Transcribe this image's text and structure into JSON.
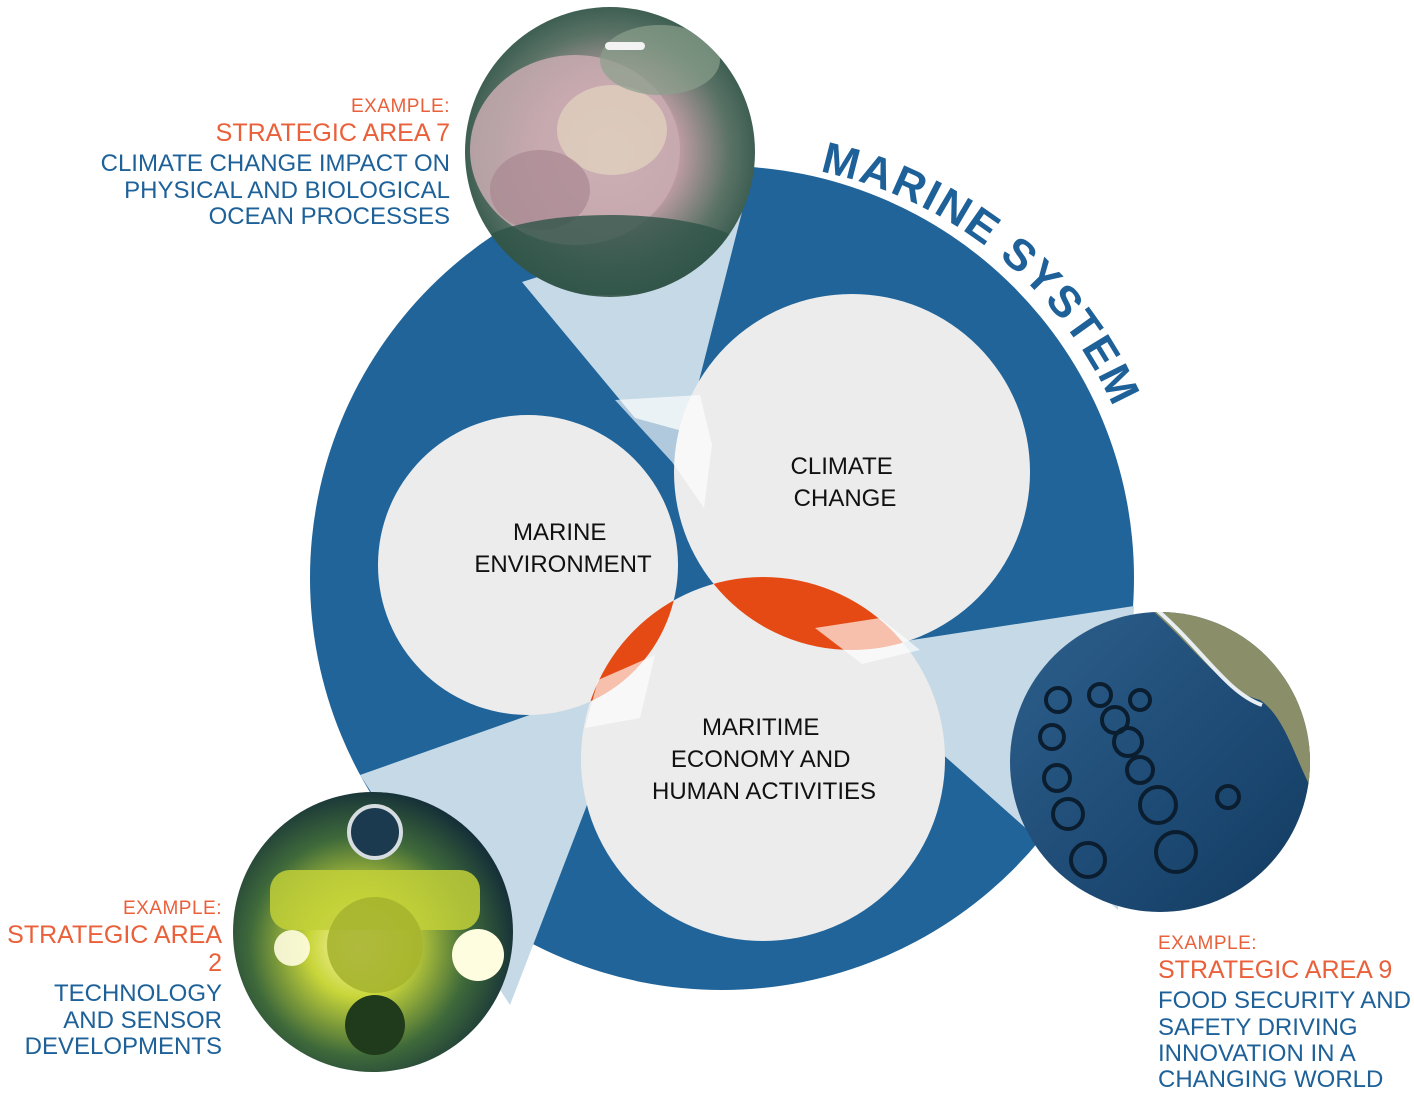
{
  "ring_title": "MARINE SYSTEM",
  "circles": {
    "marine_environment": [
      "MARINE",
      "ENVIRONMENT"
    ],
    "climate_change": [
      "CLIMATE",
      "CHANGE"
    ],
    "maritime_economy": [
      "MARITIME",
      "ECONOMY AND",
      "HUMAN ACTIVITIES"
    ]
  },
  "examples": {
    "sa7": {
      "example": "EXAMPLE:",
      "area": "STRATEGIC AREA 7",
      "description": [
        "CLIMATE CHANGE IMPACT ON",
        "PHYSICAL AND BIOLOGICAL",
        "OCEAN PROCESSES"
      ],
      "photo": "coral-reef-photo"
    },
    "sa2": {
      "example": "EXAMPLE:",
      "area": "STRATEGIC AREA 2",
      "description": [
        "TECHNOLOGY",
        "AND SENSOR",
        "DEVELOPMENTS"
      ],
      "photo": "submersible-photo"
    },
    "sa9": {
      "example": "EXAMPLE:",
      "area": "STRATEGIC AREA 9",
      "description": [
        "FOOD SECURITY AND",
        "SAFETY DRIVING",
        "INNOVATION IN A",
        "CHANGING WORLD"
      ],
      "photo": "fish-farm-photo"
    }
  },
  "colors": {
    "ring_blue": "#20649a",
    "overlap_orange": "#e64a14",
    "circle_grey": "#ececec",
    "label_orange": "#e9603a",
    "label_blue": "#1e6199"
  }
}
